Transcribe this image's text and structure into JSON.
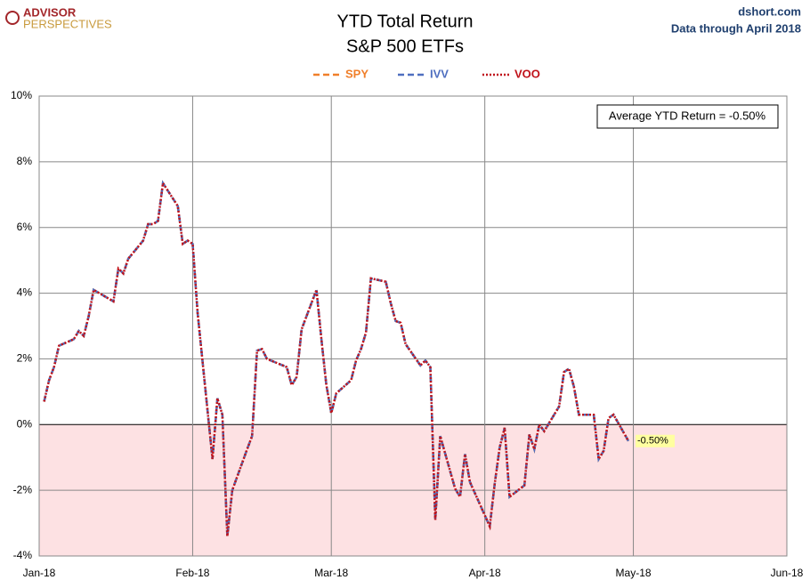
{
  "chart_data": {
    "type": "line",
    "title": "YTD Total Return",
    "subtitle": "S&P 500 ETFs",
    "brand": [
      "ADVISOR",
      "PERSPECTIVES"
    ],
    "source": "dshort.com",
    "note": "Data through April 2018",
    "annotations": [
      "Average YTD Return = -0.50%",
      "-0.50%"
    ],
    "x": [
      1,
      2,
      3,
      4,
      7,
      8,
      9,
      10,
      11,
      15,
      16,
      17,
      18,
      21,
      22,
      23,
      24,
      25,
      28,
      29,
      30,
      31,
      32,
      35,
      36,
      37,
      38,
      39,
      42,
      43,
      44,
      45,
      46,
      50,
      51,
      52,
      53,
      56,
      57,
      58,
      59,
      60,
      63,
      64,
      65,
      66,
      67,
      70,
      71,
      72,
      73,
      74,
      77,
      78,
      79,
      80,
      81,
      84,
      85,
      86,
      87,
      91,
      92,
      93,
      94,
      95,
      98,
      99,
      100,
      101,
      102,
      105,
      106,
      107,
      108,
      109,
      112,
      113,
      114,
      115,
      116,
      119
    ],
    "series": [
      {
        "name": "SPY",
        "color": "#f07f2a",
        "dash": "dashed",
        "values": [
          0.7,
          1.35,
          1.75,
          2.4,
          2.6,
          2.85,
          2.7,
          3.3,
          4.1,
          3.75,
          4.75,
          4.6,
          5.05,
          5.6,
          6.1,
          6.1,
          6.2,
          7.35,
          6.65,
          5.5,
          5.6,
          5.5,
          3.4,
          -1.05,
          0.8,
          0.3,
          -3.4,
          -2.0,
          -0.75,
          -0.35,
          2.25,
          2.3,
          2.0,
          1.75,
          1.2,
          1.45,
          2.9,
          4.1,
          2.6,
          1.2,
          0.35,
          0.95,
          1.35,
          1.95,
          2.3,
          2.8,
          4.45,
          4.35,
          3.7,
          3.15,
          3.1,
          2.45,
          1.8,
          1.95,
          1.75,
          -2.9,
          -0.35,
          -1.95,
          -2.2,
          -0.9,
          -1.75,
          -3.1,
          -1.8,
          -0.7,
          -0.1,
          -2.2,
          -1.85,
          -0.3,
          -0.75,
          0.0,
          -0.2,
          0.55,
          1.6,
          1.7,
          1.15,
          0.3,
          0.3,
          -1.05,
          -0.8,
          0.2,
          0.3,
          -0.5
        ]
      },
      {
        "name": "IVV",
        "color": "#4f6fc0",
        "dash": "dashed",
        "values": [
          0.7,
          1.35,
          1.75,
          2.4,
          2.6,
          2.85,
          2.7,
          3.3,
          4.1,
          3.75,
          4.75,
          4.6,
          5.05,
          5.6,
          6.1,
          6.1,
          6.2,
          7.35,
          6.65,
          5.5,
          5.6,
          5.5,
          3.4,
          -1.05,
          0.8,
          0.3,
          -3.4,
          -2.0,
          -0.75,
          -0.35,
          2.25,
          2.3,
          2.0,
          1.75,
          1.2,
          1.45,
          2.9,
          4.1,
          2.6,
          1.2,
          0.35,
          0.95,
          1.35,
          1.95,
          2.3,
          2.8,
          4.45,
          4.35,
          3.7,
          3.15,
          3.1,
          2.45,
          1.8,
          1.95,
          1.75,
          -2.9,
          -0.35,
          -1.95,
          -2.2,
          -0.9,
          -1.75,
          -3.1,
          -1.8,
          -0.7,
          -0.1,
          -2.2,
          -1.85,
          -0.3,
          -0.75,
          0.0,
          -0.2,
          0.55,
          1.6,
          1.7,
          1.15,
          0.3,
          0.3,
          -1.05,
          -0.8,
          0.2,
          0.3,
          -0.5
        ]
      },
      {
        "name": "VOO",
        "color": "#c0121a",
        "dash": "dotted",
        "values": [
          0.7,
          1.35,
          1.75,
          2.4,
          2.6,
          2.85,
          2.7,
          3.3,
          4.1,
          3.75,
          4.75,
          4.6,
          5.05,
          5.6,
          6.1,
          6.1,
          6.2,
          7.35,
          6.65,
          5.5,
          5.6,
          5.5,
          3.4,
          -1.05,
          0.8,
          0.3,
          -3.4,
          -2.0,
          -0.75,
          -0.35,
          2.25,
          2.3,
          2.0,
          1.75,
          1.2,
          1.45,
          2.9,
          4.1,
          2.6,
          1.2,
          0.35,
          0.95,
          1.35,
          1.95,
          2.3,
          2.8,
          4.45,
          4.35,
          3.7,
          3.15,
          3.1,
          2.45,
          1.8,
          1.95,
          1.75,
          -2.9,
          -0.35,
          -1.95,
          -2.2,
          -0.9,
          -1.75,
          -3.1,
          -1.8,
          -0.7,
          -0.1,
          -2.2,
          -1.85,
          -0.3,
          -0.75,
          0.0,
          -0.2,
          0.55,
          1.6,
          1.7,
          1.15,
          0.3,
          0.3,
          -1.05,
          -0.8,
          0.2,
          0.3,
          -0.5
        ]
      }
    ],
    "xlim": [
      0,
      151
    ],
    "xticks": [
      {
        "value": 0,
        "label": "Jan-18"
      },
      {
        "value": 31,
        "label": "Feb-18"
      },
      {
        "value": 59,
        "label": "Mar-18"
      },
      {
        "value": 90,
        "label": "Apr-18"
      },
      {
        "value": 120,
        "label": "May-18"
      },
      {
        "value": 151,
        "label": "Jun-18"
      }
    ],
    "ylim": [
      -4,
      10
    ],
    "yticks": [
      {
        "value": -4,
        "label": "-4%"
      },
      {
        "value": -2,
        "label": "-2%"
      },
      {
        "value": 0,
        "label": "0%"
      },
      {
        "value": 2,
        "label": "2%"
      },
      {
        "value": 4,
        "label": "4%"
      },
      {
        "value": 6,
        "label": "6%"
      },
      {
        "value": 8,
        "label": "8%"
      },
      {
        "value": 10,
        "label": "10%"
      }
    ],
    "grid": true,
    "negative_shade": "#fde1e3",
    "legend": "top"
  }
}
